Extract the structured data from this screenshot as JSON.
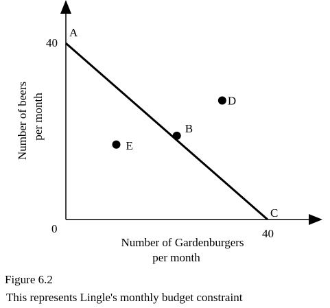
{
  "chart_data": {
    "type": "scatter",
    "x_axis": {
      "label_line1": "Number of Gardenburgers",
      "label_line2": "per month",
      "range": [
        0,
        40
      ],
      "ticks": [
        {
          "value": 40,
          "label": "40"
        }
      ]
    },
    "y_axis": {
      "label_line1": "Number of beers",
      "label_line2": "per month",
      "range": [
        0,
        40
      ],
      "ticks": [
        {
          "value": 40,
          "label": "40"
        }
      ]
    },
    "origin_label": "0",
    "budget_line": {
      "x": [
        0,
        40
      ],
      "y": [
        40,
        0
      ]
    },
    "points": [
      {
        "label": "A",
        "x": 0,
        "y": 40,
        "marker": false
      },
      {
        "label": "B",
        "x": 22,
        "y": 19,
        "marker": true
      },
      {
        "label": "C",
        "x": 40,
        "y": 0,
        "marker": false
      },
      {
        "label": "D",
        "x": 31,
        "y": 27,
        "marker": true
      },
      {
        "label": "E",
        "x": 10,
        "y": 17,
        "marker": true
      }
    ],
    "grid": false
  },
  "caption": {
    "figure": "Figure 6.2",
    "text": "This represents Lingle's monthly budget constraint"
  }
}
